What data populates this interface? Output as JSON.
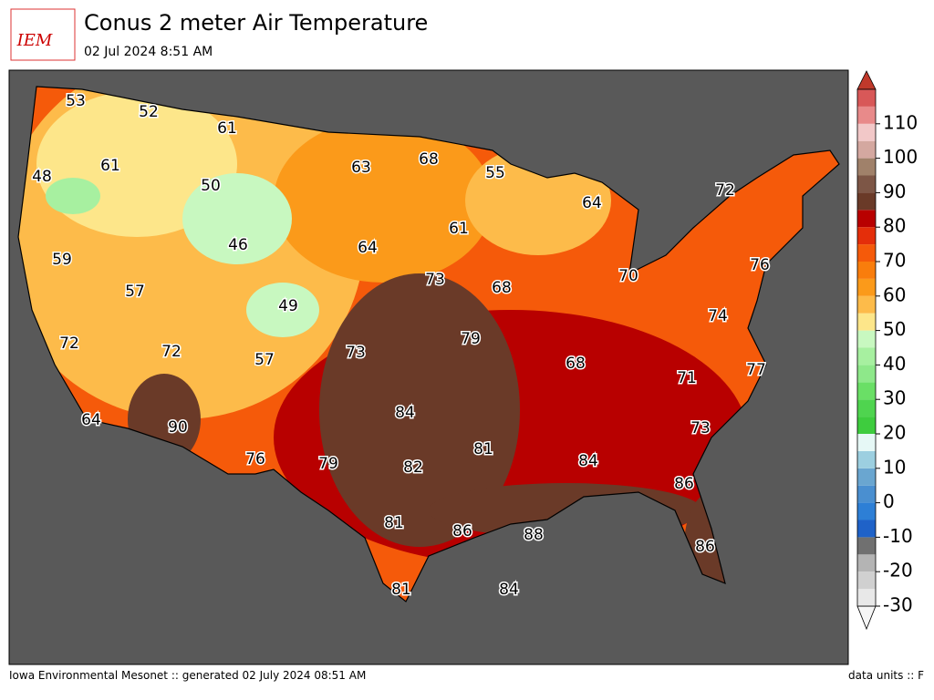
{
  "header": {
    "logo": "IEM",
    "title": "Conus 2 meter Air Temperature",
    "subtitle": "02 Jul 2024 8:51 AM"
  },
  "map": {
    "labels": [
      53,
      52,
      61,
      61,
      48,
      50,
      63,
      68,
      55,
      64,
      72,
      46,
      61,
      64,
      59,
      57,
      73,
      68,
      70,
      76,
      49,
      74,
      72,
      72,
      73,
      79,
      57,
      68,
      71,
      77,
      84,
      90,
      73,
      64,
      81,
      84,
      76,
      79,
      82,
      86,
      81,
      86,
      88,
      86,
      81,
      84
    ]
  },
  "colorbar": {
    "lim": [
      -30,
      120
    ],
    "ticks": [
      -30,
      -20,
      -10,
      0,
      10,
      20,
      30,
      40,
      50,
      60,
      70,
      80,
      90,
      100,
      110
    ],
    "colors": [
      "#e8e8e8",
      "#d0d0d0",
      "#b4b4b4",
      "#707070",
      "#1f62c8",
      "#2d7fd6",
      "#4a8fd0",
      "#6aa6d0",
      "#9ccfe0",
      "#e6f8f6",
      "#3ecc3e",
      "#4fd44f",
      "#6adf66",
      "#8ee88a",
      "#a7f0a0",
      "#c8f8c0",
      "#fde68a",
      "#fdbb4a",
      "#fb9a1a",
      "#f97d0c",
      "#f55a0a",
      "#e42e0a",
      "#b80000",
      "#6a3a28",
      "#7d5646",
      "#a0816a",
      "#d4a8a0",
      "#f2c8c8",
      "#e88a8a",
      "#d85858"
    ]
  },
  "footer": {
    "left": "Iowa Environmental Mesonet :: generated 02 July 2024 08:51 AM",
    "right": "data units :: F"
  }
}
